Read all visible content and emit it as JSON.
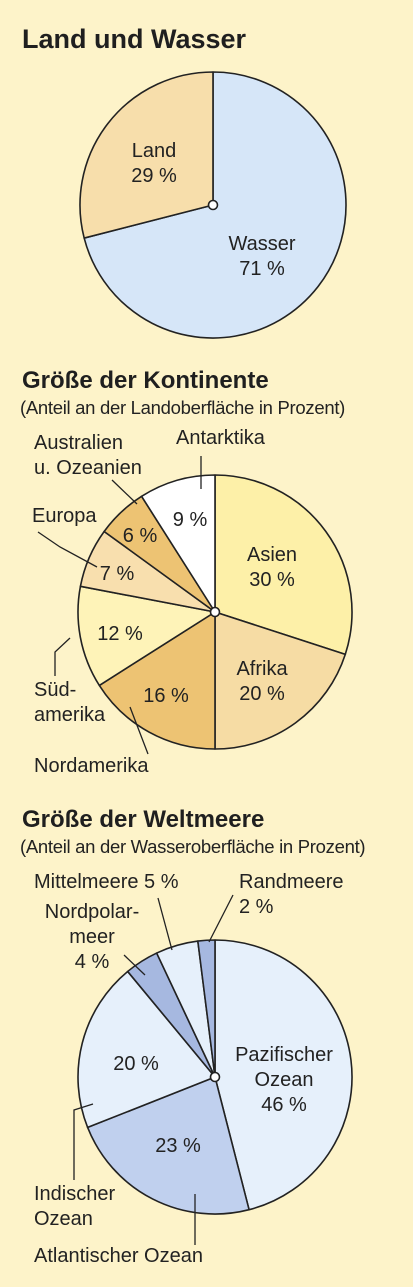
{
  "chart_data": [
    {
      "type": "pie",
      "title": "Land und Wasser",
      "subtitle": "",
      "slices": [
        {
          "name": "Wasser",
          "value": 71,
          "label": "71 %",
          "color": "#d6e6f8"
        },
        {
          "name": "Land",
          "value": 29,
          "label": "29 %",
          "color": "#f7deab"
        }
      ]
    },
    {
      "type": "pie",
      "title": "Größe der Kontinente",
      "subtitle": "(Anteil an der Landoberfläche in Prozent)",
      "slices": [
        {
          "name": "Asien",
          "value": 30,
          "label": "30 %",
          "color": "#fdf0a8"
        },
        {
          "name": "Afrika",
          "value": 20,
          "label": "20 %",
          "color": "#f6dca4"
        },
        {
          "name": "Nordamerika",
          "value": 16,
          "label": "16 %",
          "color": "#edc373"
        },
        {
          "name": "Südamerika",
          "value": 12,
          "label": "12 %",
          "color": "#fef3b8"
        },
        {
          "name": "Europa",
          "value": 7,
          "label": "7 %",
          "color": "#f8dfae"
        },
        {
          "name": "Australien u. Ozeanien",
          "value": 6,
          "label": "6 %",
          "color": "#edc373"
        },
        {
          "name": "Antarktika",
          "value": 9,
          "label": "9 %",
          "color": "#ffffff"
        }
      ]
    },
    {
      "type": "pie",
      "title": "Größe der Weltmeere",
      "subtitle": "(Anteil an der Wasseroberfläche in Prozent)",
      "slices": [
        {
          "name": "Pazifischer Ozean",
          "value": 46,
          "label": "46 %",
          "color": "#e6f0fb"
        },
        {
          "name": "Atlantischer Ozean",
          "value": 23,
          "label": "23 %",
          "color": "#c0d0ee"
        },
        {
          "name": "Indischer Ozean",
          "value": 20,
          "label": "20 %",
          "color": "#e6f0fb"
        },
        {
          "name": "Nordpolarmeer",
          "value": 4,
          "label": "4 %",
          "color": "#a6b8e0"
        },
        {
          "name": "Mittelmeere",
          "value": 5,
          "label": "5 %",
          "color": "#e6f0fb"
        },
        {
          "name": "Randmeere",
          "value": 2,
          "label": "2 %",
          "color": "#a6b8e0"
        }
      ]
    }
  ]
}
